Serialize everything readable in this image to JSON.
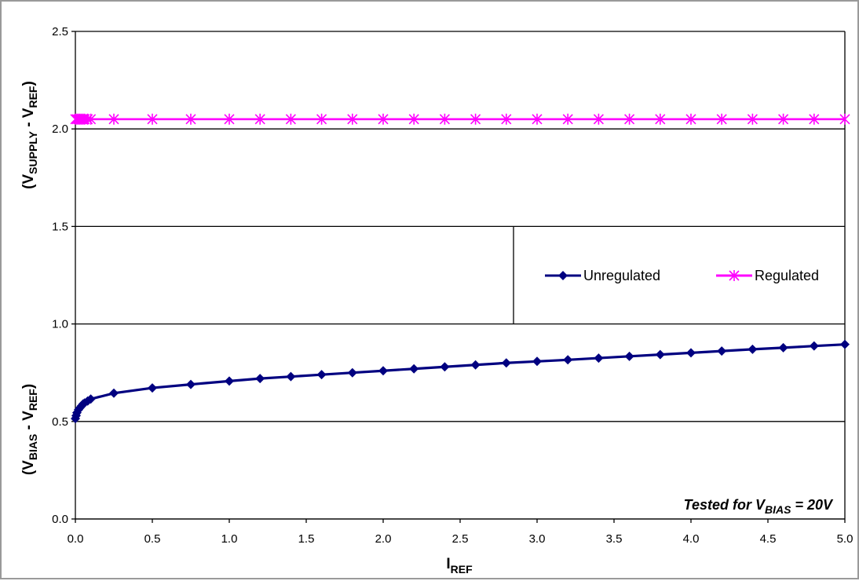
{
  "chart_data": {
    "type": "line",
    "xlim": [
      0,
      5
    ],
    "ylim": [
      0,
      2.5
    ],
    "x_ticks": [
      "0.0",
      "0.5",
      "1.0",
      "1.5",
      "2.0",
      "2.5",
      "3.0",
      "3.5",
      "4.0",
      "4.5",
      "5.0"
    ],
    "y_ticks": [
      "0.0",
      "0.5",
      "1.0",
      "1.5",
      "2.0",
      "2.5"
    ],
    "xlabel": {
      "main": "I",
      "sub": "REF"
    },
    "ylabel_lower": {
      "p1": "(V",
      "s1": "BIAS",
      "p2": " - V",
      "s2": "REF",
      "p3": ")"
    },
    "ylabel_upper": {
      "p1": "(V",
      "s1": "SUPPLY",
      "p2": " - V",
      "s2": "REF",
      "p3": ")"
    },
    "grid": "horizontal",
    "legend_position": "right",
    "annotation": {
      "p1": "Tested for V",
      "sub": "BIAS",
      "p2": " = 20V"
    },
    "series": [
      {
        "name": "Unregulated",
        "color": "#000080",
        "marker": "diamond",
        "x": [
          0.0,
          0.005,
          0.01,
          0.02,
          0.03,
          0.04,
          0.05,
          0.06,
          0.08,
          0.1,
          0.25,
          0.5,
          0.75,
          1.0,
          1.2,
          1.4,
          1.6,
          1.8,
          2.0,
          2.2,
          2.4,
          2.6,
          2.8,
          3.0,
          3.2,
          3.4,
          3.6,
          3.8,
          4.0,
          4.2,
          4.4,
          4.6,
          4.8,
          5.0
        ],
        "y": [
          0.515,
          0.53,
          0.545,
          0.56,
          0.57,
          0.58,
          0.59,
          0.595,
          0.605,
          0.615,
          0.645,
          0.672,
          0.69,
          0.707,
          0.72,
          0.73,
          0.74,
          0.75,
          0.76,
          0.77,
          0.78,
          0.79,
          0.8,
          0.808,
          0.816,
          0.825,
          0.834,
          0.843,
          0.852,
          0.861,
          0.87,
          0.878,
          0.887,
          0.895
        ]
      },
      {
        "name": "Regulated",
        "color": "#ff00ff",
        "marker": "star",
        "x": [
          0.0,
          0.01,
          0.02,
          0.03,
          0.04,
          0.05,
          0.06,
          0.08,
          0.1,
          0.25,
          0.5,
          0.75,
          1.0,
          1.2,
          1.4,
          1.6,
          1.8,
          2.0,
          2.2,
          2.4,
          2.6,
          2.8,
          3.0,
          3.2,
          3.4,
          3.6,
          3.8,
          4.0,
          4.2,
          4.4,
          4.6,
          4.8,
          5.0
        ],
        "y": [
          2.05,
          2.05,
          2.05,
          2.05,
          2.05,
          2.05,
          2.05,
          2.05,
          2.05,
          2.05,
          2.05,
          2.05,
          2.05,
          2.05,
          2.05,
          2.05,
          2.05,
          2.05,
          2.05,
          2.05,
          2.05,
          2.05,
          2.05,
          2.05,
          2.05,
          2.05,
          2.05,
          2.05,
          2.05,
          2.05,
          2.05,
          2.05,
          2.05
        ]
      }
    ]
  }
}
